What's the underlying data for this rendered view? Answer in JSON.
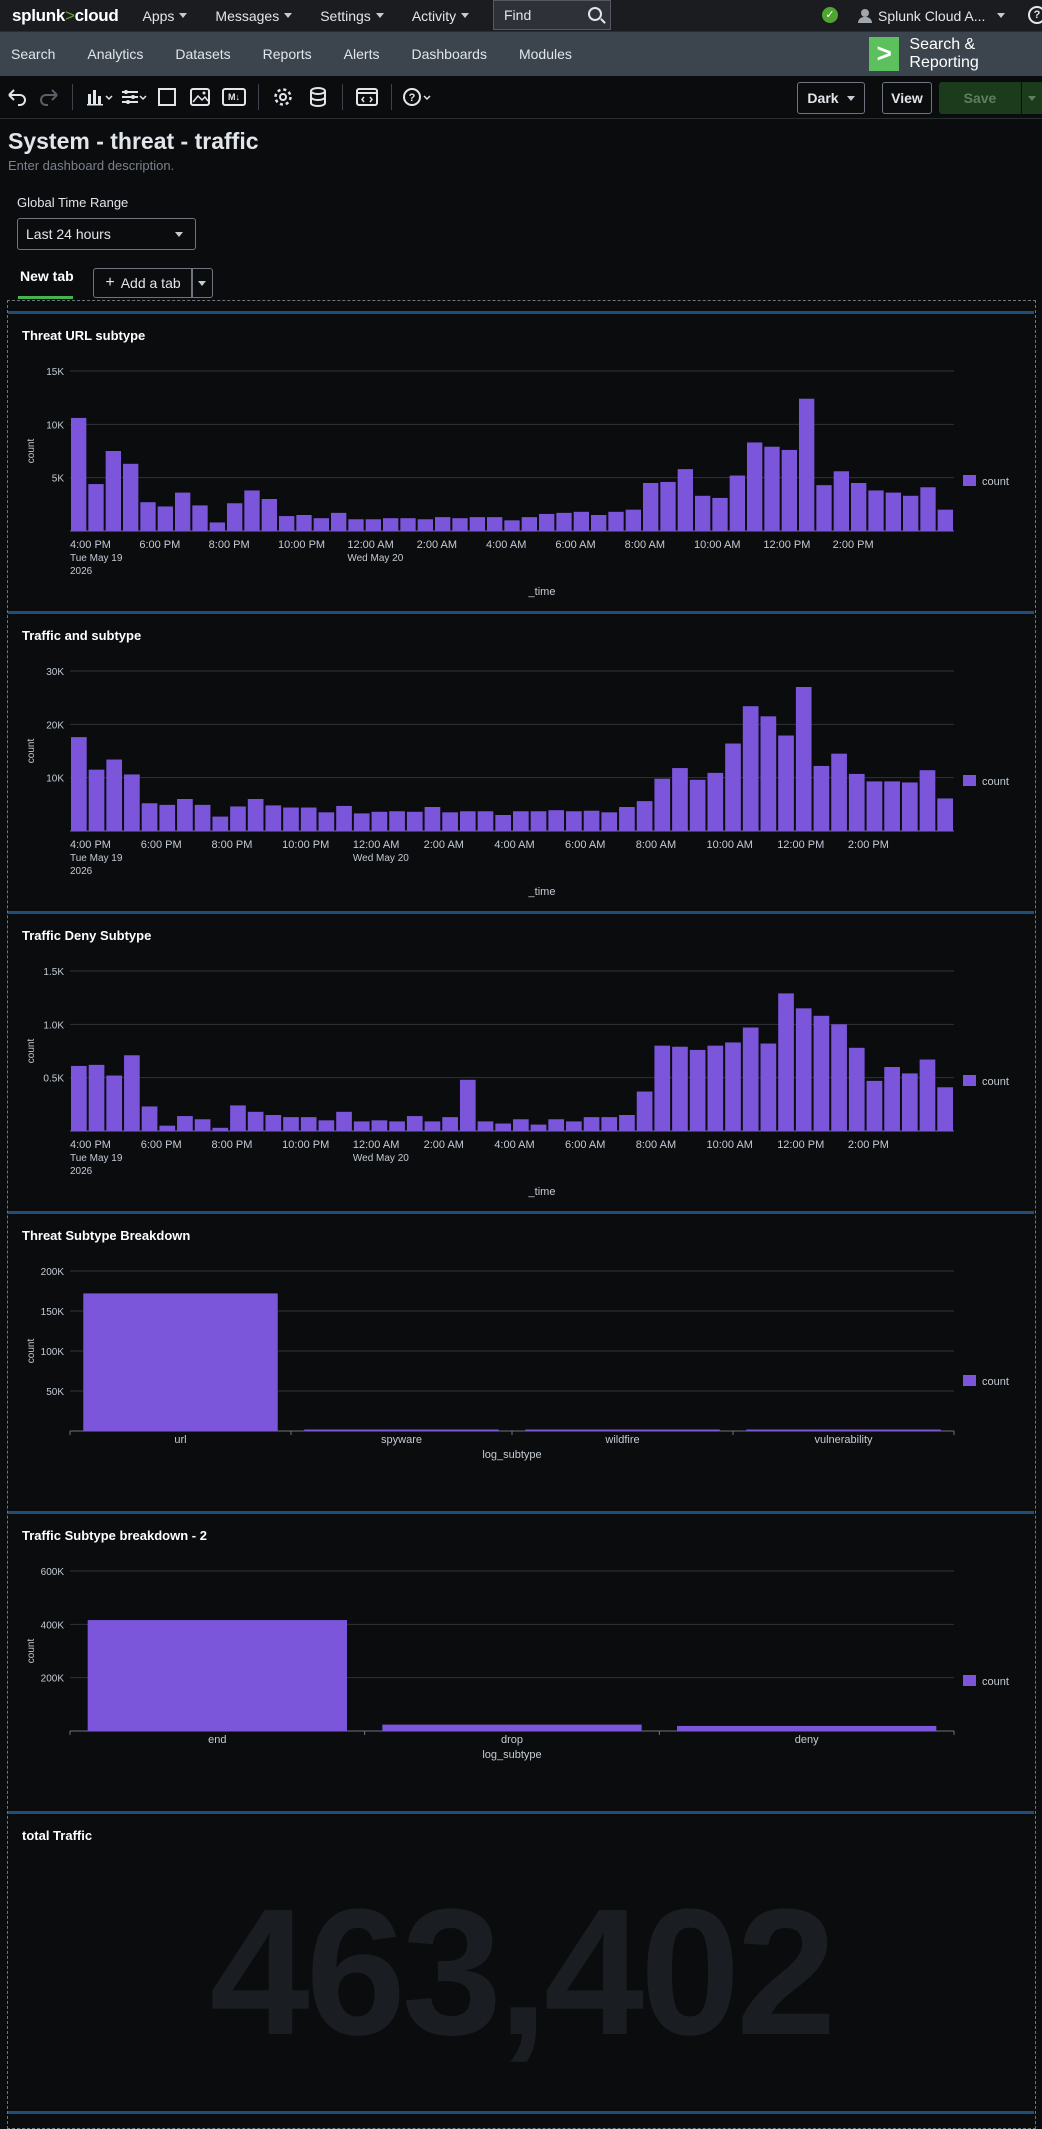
{
  "topbar": {
    "logo_main": "splunk",
    "logo_sep": ">",
    "logo_suffix": "cloud",
    "nav": [
      "Apps",
      "Messages",
      "Settings",
      "Activity"
    ],
    "find_placeholder": "Find",
    "user": "Splunk Cloud A...",
    "help": "?"
  },
  "appbar": {
    "tabs": [
      "Search",
      "Analytics",
      "Datasets",
      "Reports",
      "Alerts",
      "Dashboards",
      "Modules"
    ],
    "app_name": "Search & Reporting",
    "app_icon": ">"
  },
  "toolbar": {
    "theme_label": "Dark",
    "view_label": "View",
    "save_label": "Save",
    "icons": [
      "undo-icon",
      "redo-icon",
      "chart-icon",
      "filter-icon",
      "rectangle-icon",
      "image-icon",
      "markdown-icon",
      "settings-icon",
      "datasource-icon",
      "source-code-icon",
      "help-icon"
    ],
    "markdown_text": "M↓"
  },
  "dashboard": {
    "title": "System - threat - traffic",
    "description": "Enter dashboard description.",
    "time_input_label": "Global Time Range",
    "time_input_value": "Last 24 hours",
    "tab_label": "New tab",
    "add_tab_label": "Add a tab"
  },
  "time_axis": {
    "ticks": [
      "4:00 PM",
      "6:00 PM",
      "8:00 PM",
      "10:00 PM",
      "12:00 AM",
      "2:00 AM",
      "4:00 AM",
      "6:00 AM",
      "8:00 AM",
      "10:00 AM",
      "12:00 PM",
      "2:00 PM"
    ],
    "date_first": "Tue May 19",
    "year_first": "2026",
    "date_second": "Wed May 20",
    "xlabel": "_time"
  },
  "chart_data": [
    {
      "type": "bar",
      "title": "Threat URL subtype",
      "ylabel": "count",
      "xlabel": "_time",
      "y_ticks": [
        "15K",
        "10K",
        "5K"
      ],
      "ylim": [
        0,
        15000
      ],
      "legend": "count",
      "legend_position": "right",
      "color": "#7b56db",
      "values": [
        10600,
        4400,
        7500,
        6300,
        2700,
        2300,
        3600,
        2400,
        800,
        2600,
        3800,
        3000,
        1400,
        1500,
        1200,
        1700,
        1100,
        1100,
        1200,
        1200,
        1100,
        1300,
        1200,
        1300,
        1300,
        1000,
        1300,
        1600,
        1700,
        1800,
        1500,
        1800,
        2000,
        4500,
        4600,
        5800,
        3300,
        3100,
        5200,
        8300,
        7900,
        7600,
        12400,
        4300,
        5600,
        4500,
        3800,
        3600,
        3300,
        4100,
        2000
      ]
    },
    {
      "type": "bar",
      "title": "Traffic and subtype",
      "ylabel": "count",
      "xlabel": "_time",
      "y_ticks": [
        "30K",
        "20K",
        "10K"
      ],
      "ylim": [
        0,
        30000
      ],
      "legend": "count",
      "legend_position": "right",
      "color": "#7b56db",
      "values": [
        17600,
        11500,
        13400,
        10600,
        5200,
        4900,
        6000,
        4900,
        2700,
        4600,
        6000,
        4800,
        4400,
        4400,
        3500,
        4700,
        3300,
        3600,
        3700,
        3600,
        4500,
        3500,
        3700,
        3700,
        3000,
        3700,
        3700,
        3900,
        3700,
        3800,
        3500,
        4500,
        5600,
        9800,
        11800,
        9600,
        10900,
        16400,
        23400,
        21500,
        17900,
        27000,
        12200,
        14500,
        10700,
        9300,
        9300,
        9100,
        11400,
        6100
      ]
    },
    {
      "type": "bar",
      "title": "Traffic Deny Subtype",
      "ylabel": "count",
      "xlabel": "_time",
      "y_ticks": [
        "1.5K",
        "1.0K",
        "0.5K"
      ],
      "ylim": [
        0,
        1500
      ],
      "legend": "count",
      "legend_position": "right",
      "color": "#7b56db",
      "values": [
        610,
        620,
        520,
        710,
        230,
        50,
        140,
        110,
        30,
        240,
        180,
        150,
        130,
        130,
        100,
        180,
        90,
        100,
        90,
        140,
        90,
        130,
        480,
        90,
        70,
        110,
        60,
        110,
        90,
        130,
        130,
        150,
        370,
        800,
        790,
        760,
        800,
        830,
        970,
        820,
        1290,
        1150,
        1080,
        1000,
        780,
        470,
        600,
        540,
        670,
        410
      ]
    },
    {
      "type": "bar",
      "title": "Threat Subtype Breakdown",
      "ylabel": "count",
      "xlabel": "log_subtype",
      "y_ticks": [
        "200K",
        "150K",
        "100K",
        "50K"
      ],
      "ylim": [
        0,
        200000
      ],
      "legend": "count",
      "legend_position": "right",
      "color": "#7b56db",
      "categories": [
        "url",
        "spyware",
        "wildfire",
        "vulnerability"
      ],
      "values": [
        172000,
        600,
        400,
        900
      ]
    },
    {
      "type": "bar",
      "title": "Traffic Subtype breakdown - 2",
      "ylabel": "count",
      "xlabel": "log_subtype",
      "y_ticks": [
        "600K",
        "400K",
        "200K"
      ],
      "ylim": [
        0,
        600000
      ],
      "legend": "count",
      "legend_position": "right",
      "color": "#7b56db",
      "categories": [
        "end",
        "drop",
        "deny"
      ],
      "values": [
        416000,
        24000,
        19000
      ]
    }
  ],
  "single_value": {
    "title": "total Traffic",
    "value": "463,402"
  }
}
